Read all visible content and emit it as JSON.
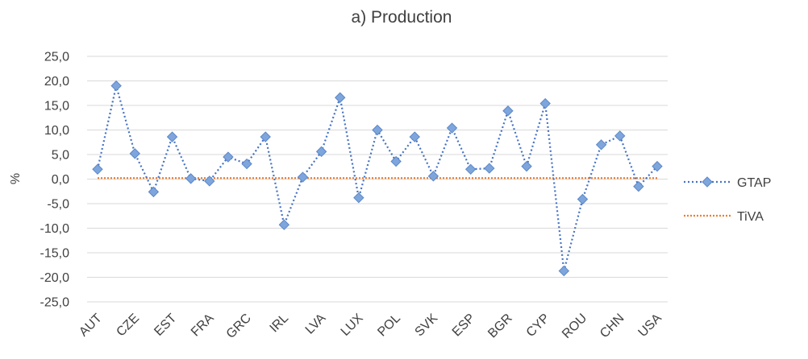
{
  "chart_data": {
    "type": "line",
    "title": "a) Production",
    "xlabel": "",
    "ylabel": "%",
    "ylim": [
      -25,
      25
    ],
    "yticks": [
      "25,0",
      "20,0",
      "15,0",
      "10,0",
      "5,0",
      "0,0",
      "-5,0",
      "-10,0",
      "-15,0",
      "-20,0",
      "-25,0"
    ],
    "x_tick_labels": [
      "AUT",
      "CZE",
      "EST",
      "FRA",
      "GRC",
      "IRL",
      "LVA",
      "LUX",
      "POL",
      "SVK",
      "ESP",
      "BGR",
      "CYP",
      "ROU",
      "CHN",
      "USA"
    ],
    "grid": true,
    "legend_position": "right",
    "series": [
      {
        "name": "GTAP",
        "color": "#4472c4",
        "marker": "diamond",
        "line_style": "dotted",
        "values": [
          2.0,
          19.0,
          5.2,
          -2.6,
          8.6,
          0.1,
          -0.4,
          4.5,
          3.1,
          8.6,
          -9.3,
          0.4,
          5.6,
          16.6,
          -3.8,
          10.0,
          3.6,
          8.6,
          0.6,
          10.4,
          2.0,
          2.2,
          13.9,
          2.6,
          15.4,
          -18.7,
          -4.1,
          7.0,
          8.8,
          -1.5,
          2.6
        ]
      },
      {
        "name": "TiVA",
        "color": "#ed7d31",
        "marker": "none",
        "line_style": "dotted",
        "values": [
          0.2,
          0.2,
          0.2,
          0.2,
          0.2,
          0.2,
          0.2,
          0.2,
          0.2,
          0.2,
          0.2,
          0.2,
          0.2,
          0.2,
          0.2,
          0.2,
          0.2,
          0.2,
          0.2,
          0.2,
          0.2,
          0.2,
          0.2,
          0.2,
          0.2,
          0.2,
          0.2,
          0.2,
          0.2,
          0.2,
          0.2
        ]
      }
    ]
  }
}
